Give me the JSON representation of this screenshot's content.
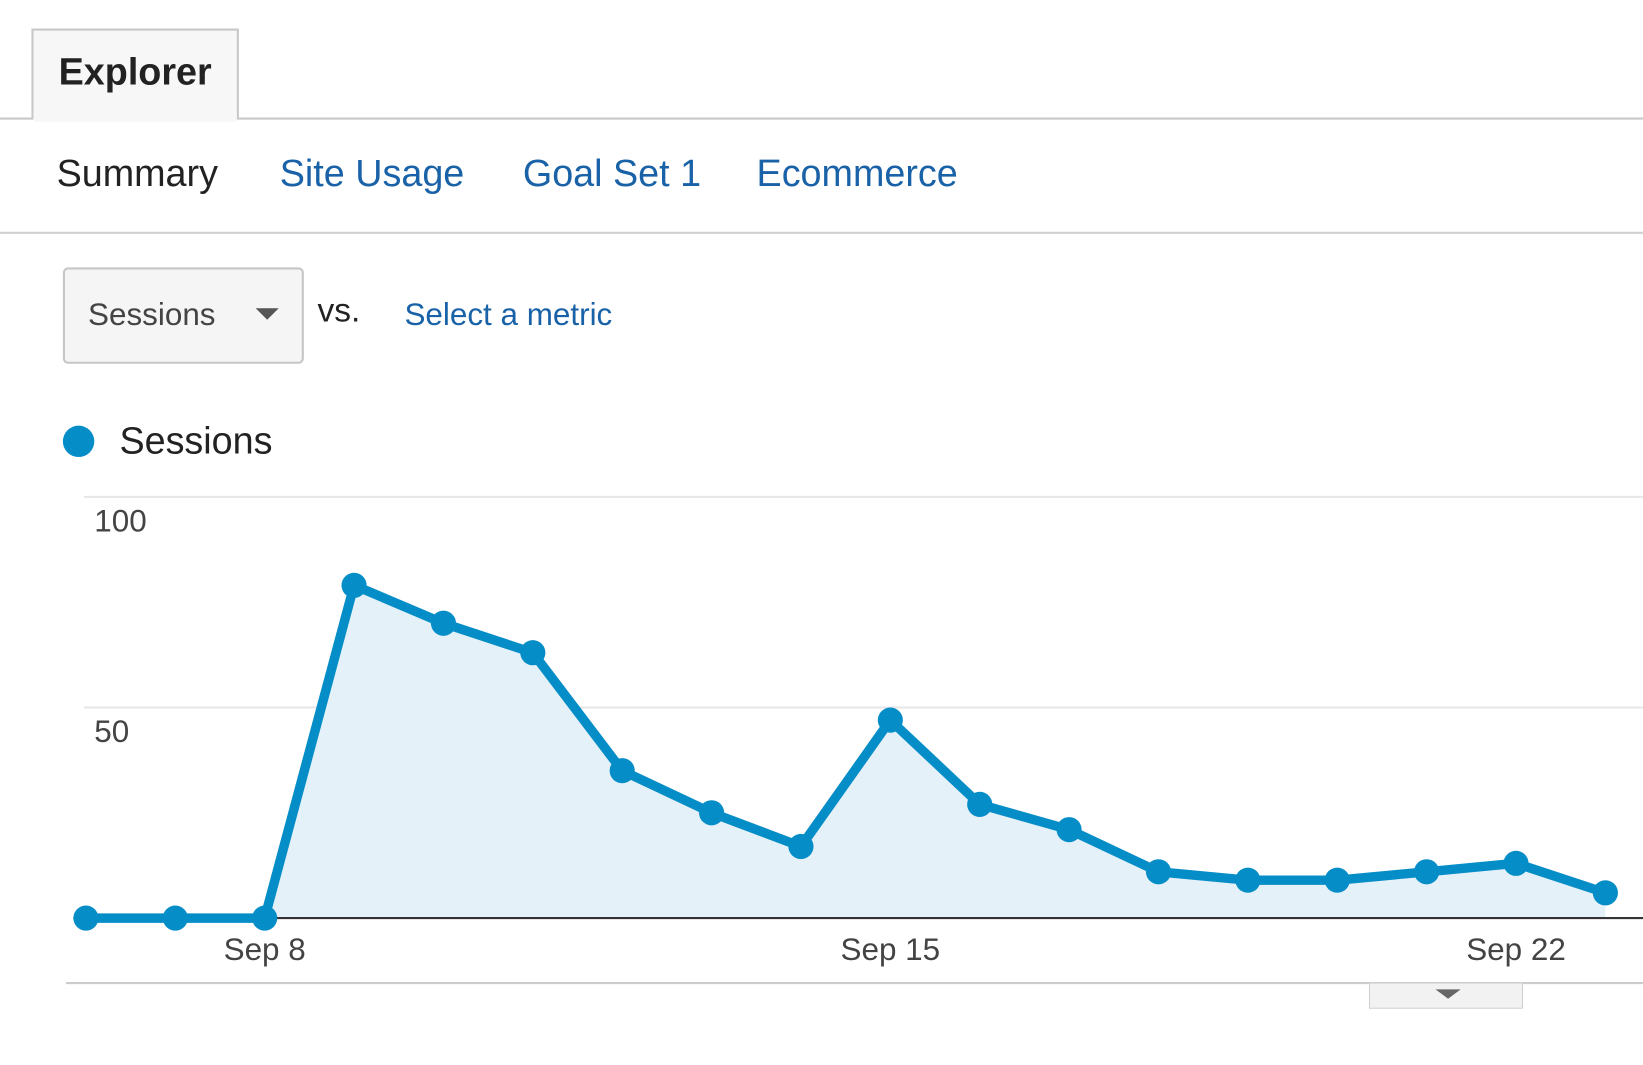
{
  "tabs": {
    "active": "Explorer"
  },
  "subtabs": [
    "Summary",
    "Site Usage",
    "Goal Set 1",
    "Ecommerce"
  ],
  "metric_selector": {
    "selected": "Sessions",
    "vs": "vs.",
    "link": "Select a metric"
  },
  "chart_data": {
    "type": "line",
    "categories": [
      null,
      null,
      "Sep 8",
      null,
      null,
      null,
      null,
      null,
      null,
      "Sep 15",
      null,
      null,
      null,
      null,
      null,
      null,
      "Sep 22",
      null
    ],
    "series": [
      {
        "name": "Sessions",
        "color": "#058dc7",
        "fill": "#e5f1f8",
        "values": [
          0,
          0,
          0,
          79,
          70,
          63,
          35,
          25,
          17,
          47,
          27,
          21,
          11,
          9,
          9,
          11,
          13,
          6
        ]
      }
    ],
    "ylim": [
      0,
      100
    ],
    "yticks": [
      50,
      100
    ],
    "grid": true
  }
}
